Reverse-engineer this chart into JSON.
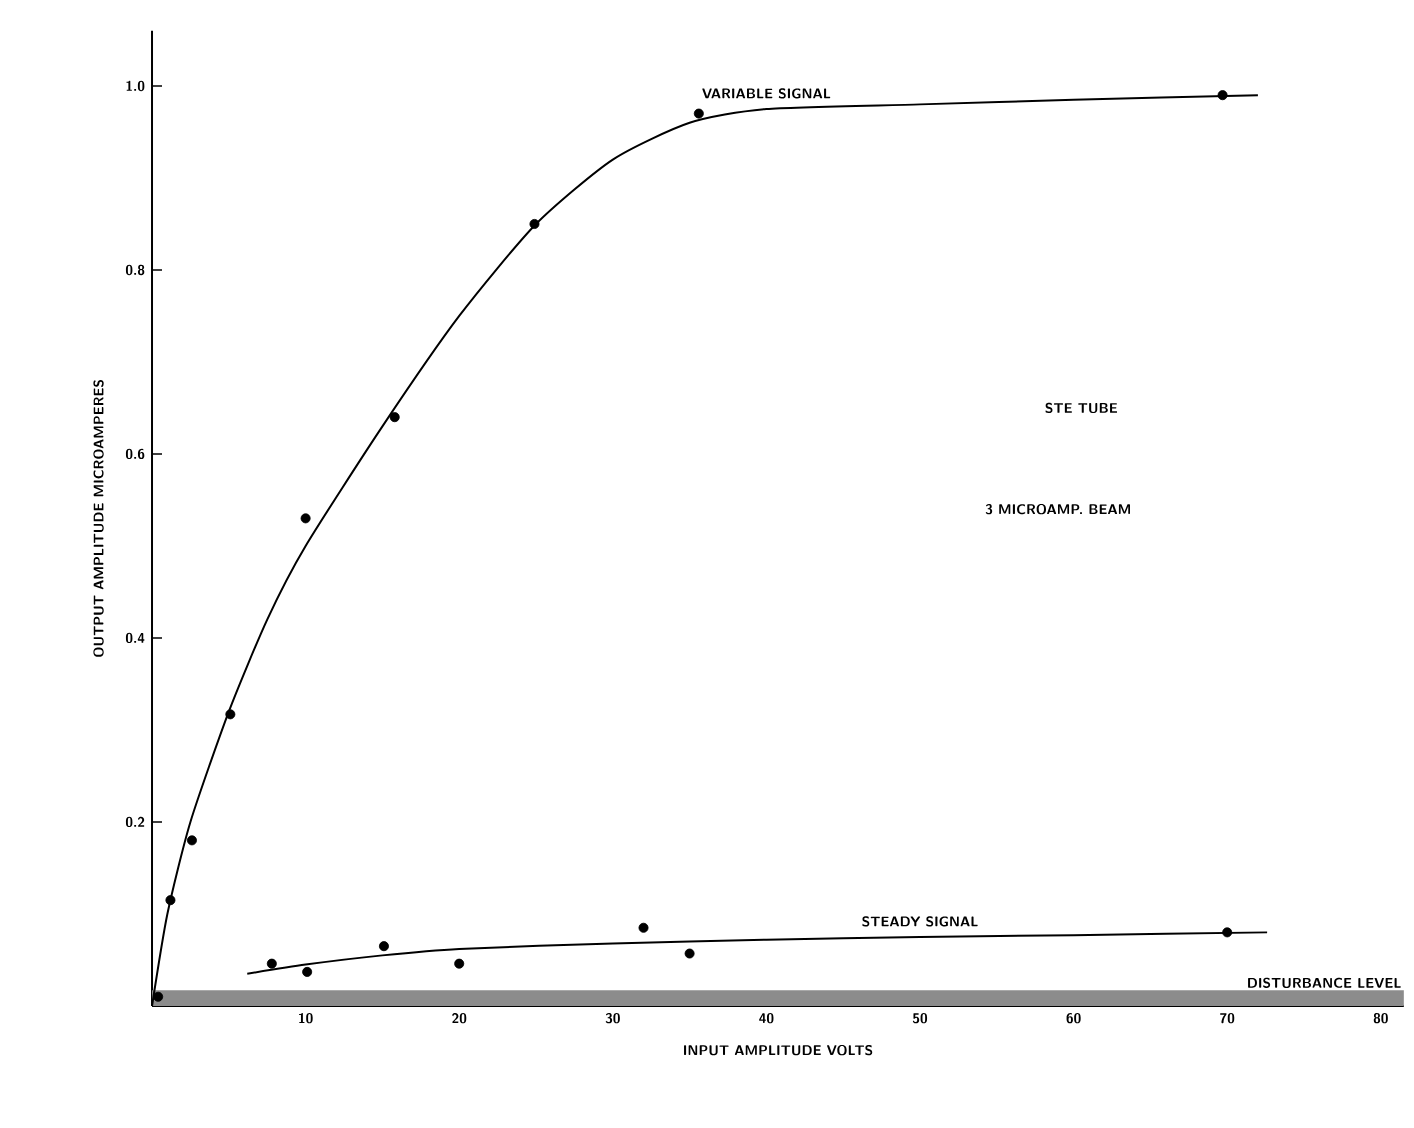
{
  "chart_data": {
    "type": "scatter",
    "xlabel": "INPUT AMPLITUDE      VOLTS",
    "ylabel": "OUTPUT AMPLITUDE      MICROAMPERES",
    "xlim": [
      0,
      81.5
    ],
    "ylim": [
      0,
      1.06
    ],
    "xticks": [
      10,
      20,
      30,
      40,
      50,
      60,
      70,
      80
    ],
    "yticks": [
      0.2,
      0.4,
      0.6,
      0.8,
      {
        "value": 1.0,
        "label": "1.0"
      }
    ],
    "grid": false,
    "legend": false,
    "series": [
      {
        "marker": "circle",
        "color": "#000000",
        "x": [
          0.4,
          1.2,
          2.6,
          5.1,
          10,
          15.8,
          24.9,
          35.6,
          69.7
        ],
        "values": [
          0.01,
          0.115,
          0.18,
          0.317,
          0.53,
          0.64,
          0.85,
          0.97,
          0.99
        ]
      },
      {
        "type": "line",
        "name": "VARIABLE SIGNAL",
        "marker": "none",
        "line_style": "solid",
        "color": "#000000",
        "x": [
          0,
          1,
          2.5,
          5,
          7.5,
          10,
          15,
          20,
          25,
          30,
          35,
          40,
          50,
          60,
          72
        ],
        "values": [
          0,
          0.1,
          0.2,
          0.32,
          0.42,
          0.5,
          0.63,
          0.75,
          0.85,
          0.92,
          0.96,
          0.975,
          0.98,
          0.985,
          0.99
        ]
      },
      {
        "marker": "circle",
        "color": "#000000",
        "x": [
          7.8,
          10.1,
          15.1,
          20,
          32,
          35,
          70
        ],
        "values": [
          0.046,
          0.037,
          0.065,
          0.046,
          0.085,
          0.057,
          0.08
        ]
      },
      {
        "type": "line",
        "name": "STEADY SIGNAL",
        "marker": "none",
        "line_style": "solid",
        "color": "#000000",
        "x": [
          6.2,
          10,
          15,
          20,
          30,
          40,
          50,
          60,
          72.6
        ],
        "values": [
          0.035,
          0.045,
          0.055,
          0.062,
          0.068,
          0.072,
          0.075,
          0.077,
          0.08
        ]
      }
    ],
    "bands": [
      {
        "axis": "y",
        "from": 0,
        "to": 0.017,
        "label": "DISTURBANCE LEVEL",
        "color": "#8c8c8c"
      }
    ],
    "annotations": [
      "STE TUBE",
      "3 MICROAMP. BEAM"
    ]
  }
}
